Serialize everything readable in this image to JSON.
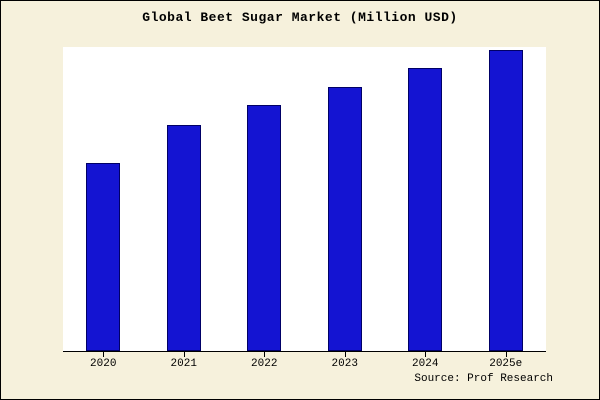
{
  "frame": {
    "background": "#f6f1dc"
  },
  "chart_data": {
    "type": "bar",
    "title": "Global Beet Sugar Market (Million USD)",
    "categories": [
      "2020",
      "2021",
      "2022",
      "2023",
      "2024",
      "2025e"
    ],
    "values": [
      62,
      74.5,
      81,
      87,
      93,
      99
    ],
    "units": "relative height (no y-axis tick labels shown)",
    "xlabel": "",
    "ylabel": "",
    "ylim": [
      0,
      100
    ],
    "grid": false,
    "legend": false,
    "bar_color": "#1414d2",
    "bar_edge_color": "#000066",
    "plot_background": "#ffffff"
  },
  "source": "Source: Prof Research"
}
